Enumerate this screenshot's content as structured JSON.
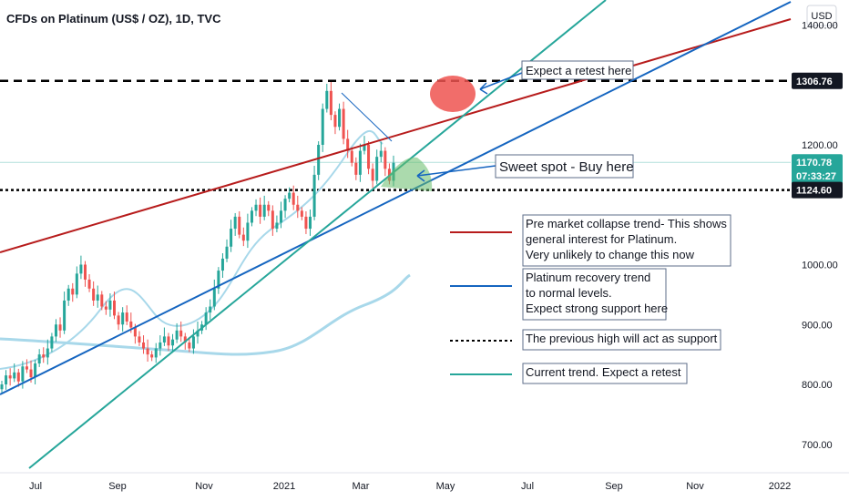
{
  "chart_data": {
    "type": "candlestick",
    "title": "CFDs on Platinum (US$ / OZ), 1D, TVC",
    "currency": "USD",
    "y_ticks": [
      "1400.00",
      "1200.00",
      "1000.00",
      "900.00",
      "800.00",
      "700.00"
    ],
    "y_tick_values": [
      1400,
      1200,
      1000,
      900,
      800,
      700
    ],
    "x_ticks": [
      "Jul",
      "Sep",
      "Nov",
      "2021",
      "Mar",
      "May",
      "Jul",
      "Sep",
      "Nov",
      "2022"
    ],
    "ylim": [
      660,
      1460
    ],
    "price_labels": [
      {
        "text": "1306.76",
        "value": 1306.76,
        "color": "#131722"
      },
      {
        "text": "1170.78",
        "value": 1170.78,
        "color": "#26a69a"
      },
      {
        "text": "07:33:27",
        "value": 1148,
        "color": "#26a69a"
      },
      {
        "text": "1124.60",
        "value": 1124.6,
        "color": "#131722"
      }
    ],
    "horizontal_levels": [
      {
        "value": 1306.76,
        "style": "dashed",
        "color": "#000000"
      },
      {
        "value": 1124.6,
        "style": "dotted",
        "color": "#000000"
      },
      {
        "value": 1170.78,
        "style": "solid",
        "color": "#b2dfdb"
      }
    ],
    "colors": {
      "up": "#26a69a",
      "down": "#ef5350",
      "red_trend": "#b71c1c",
      "blue_trend": "#1565c0",
      "teal_trend": "#26a69a",
      "ma": "#a8d8ea"
    },
    "annotations": [
      {
        "text": "Expect a retest here"
      },
      {
        "text": "Sweet spot - Buy here"
      }
    ],
    "legend": [
      {
        "color": "#b71c1c",
        "style": "solid",
        "lines": [
          "Pre market collapse trend- This shows",
          "general interest for Platinum.",
          "Very unlikely to change this now"
        ]
      },
      {
        "color": "#1565c0",
        "style": "solid",
        "lines": [
          "Platinum recovery trend",
          "to normal levels.",
          "Expect strong support here"
        ]
      },
      {
        "color": "#000000",
        "style": "dotted",
        "lines": [
          "The previous high will act as support"
        ]
      },
      {
        "color": "#26a69a",
        "style": "solid",
        "lines": [
          "Current trend. Expect a retest"
        ]
      }
    ],
    "close_series": [
      800,
      815,
      810,
      820,
      805,
      830,
      825,
      812,
      835,
      850,
      845,
      860,
      880,
      900,
      890,
      940,
      960,
      950,
      985,
      1000,
      975,
      960,
      940,
      950,
      930,
      925,
      940,
      915,
      900,
      920,
      905,
      895,
      880,
      870,
      860,
      850,
      845,
      860,
      870,
      880,
      865,
      875,
      890,
      880,
      870,
      860,
      880,
      890,
      900,
      920,
      930,
      960,
      990,
      1010,
      1030,
      1060,
      1080,
      1050,
      1040,
      1070,
      1090,
      1100,
      1080,
      1100,
      1090,
      1060,
      1070,
      1090,
      1110,
      1120,
      1100,
      1090,
      1080,
      1060,
      1080,
      1150,
      1200,
      1260,
      1290,
      1250,
      1230,
      1260,
      1210,
      1190,
      1170,
      1150,
      1190,
      1200,
      1160,
      1140,
      1180,
      1190,
      1160,
      1140,
      1170
    ]
  }
}
